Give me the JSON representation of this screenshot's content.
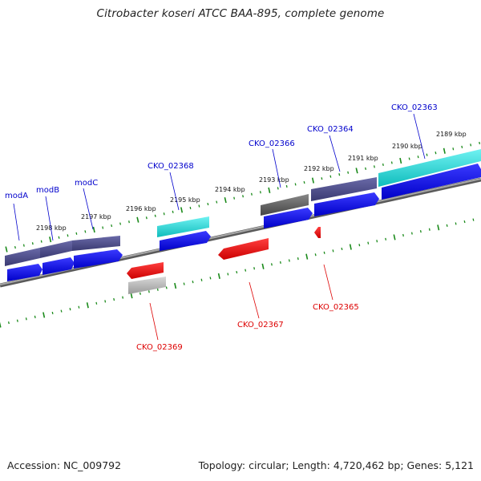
{
  "title": "Citrobacter koseri ATCC BAA-895, complete genome",
  "footer": {
    "accession": "Accession: NC_009792",
    "summary": "Topology: circular; Length: 4,720,462 bp; Genes: 5,121"
  },
  "colors": {
    "forward_label": "#0000cc",
    "reverse_label": "#dd0000",
    "tick": "#1a8a1a",
    "backbone": "#888888",
    "cds_blue": "#0000dd",
    "gene_purple": "#4a4a8a",
    "gene_cyan": "#19d3d3",
    "gene_red": "#dd0000",
    "gene_gray": "#555555",
    "gene_lightgray": "#b0b0b0"
  },
  "scale_labels": [
    {
      "text": "2198 kbp",
      "kbp": 2198
    },
    {
      "text": "2197 kbp",
      "kbp": 2197
    },
    {
      "text": "2196 kbp",
      "kbp": 2196
    },
    {
      "text": "2195 kbp",
      "kbp": 2195
    },
    {
      "text": "2194 kbp",
      "kbp": 2194
    },
    {
      "text": "2193 kbp",
      "kbp": 2193
    },
    {
      "text": "2192 kbp",
      "kbp": 2192
    },
    {
      "text": "2191 kbp",
      "kbp": 2191
    },
    {
      "text": "2190 kbp",
      "kbp": 2190
    },
    {
      "text": "2189 kbp",
      "kbp": 2189
    }
  ],
  "forward_genes": [
    {
      "name": "modA",
      "type": "gene",
      "strand": "+"
    },
    {
      "name": "modB",
      "type": "gene",
      "strand": "+"
    },
    {
      "name": "modC",
      "type": "gene",
      "strand": "+"
    },
    {
      "name": "CKO_02368",
      "type": "gene",
      "strand": "+"
    },
    {
      "name": "CKO_02366",
      "type": "gene",
      "strand": "+"
    },
    {
      "name": "CKO_02364",
      "type": "gene",
      "strand": "+"
    },
    {
      "name": "CKO_02363",
      "type": "gene",
      "strand": "+"
    }
  ],
  "reverse_genes": [
    {
      "name": "CKO_02369",
      "type": "gene",
      "strand": "-"
    },
    {
      "name": "CKO_02367",
      "type": "gene",
      "strand": "-"
    },
    {
      "name": "CKO_02365",
      "type": "gene",
      "strand": "-"
    }
  ]
}
